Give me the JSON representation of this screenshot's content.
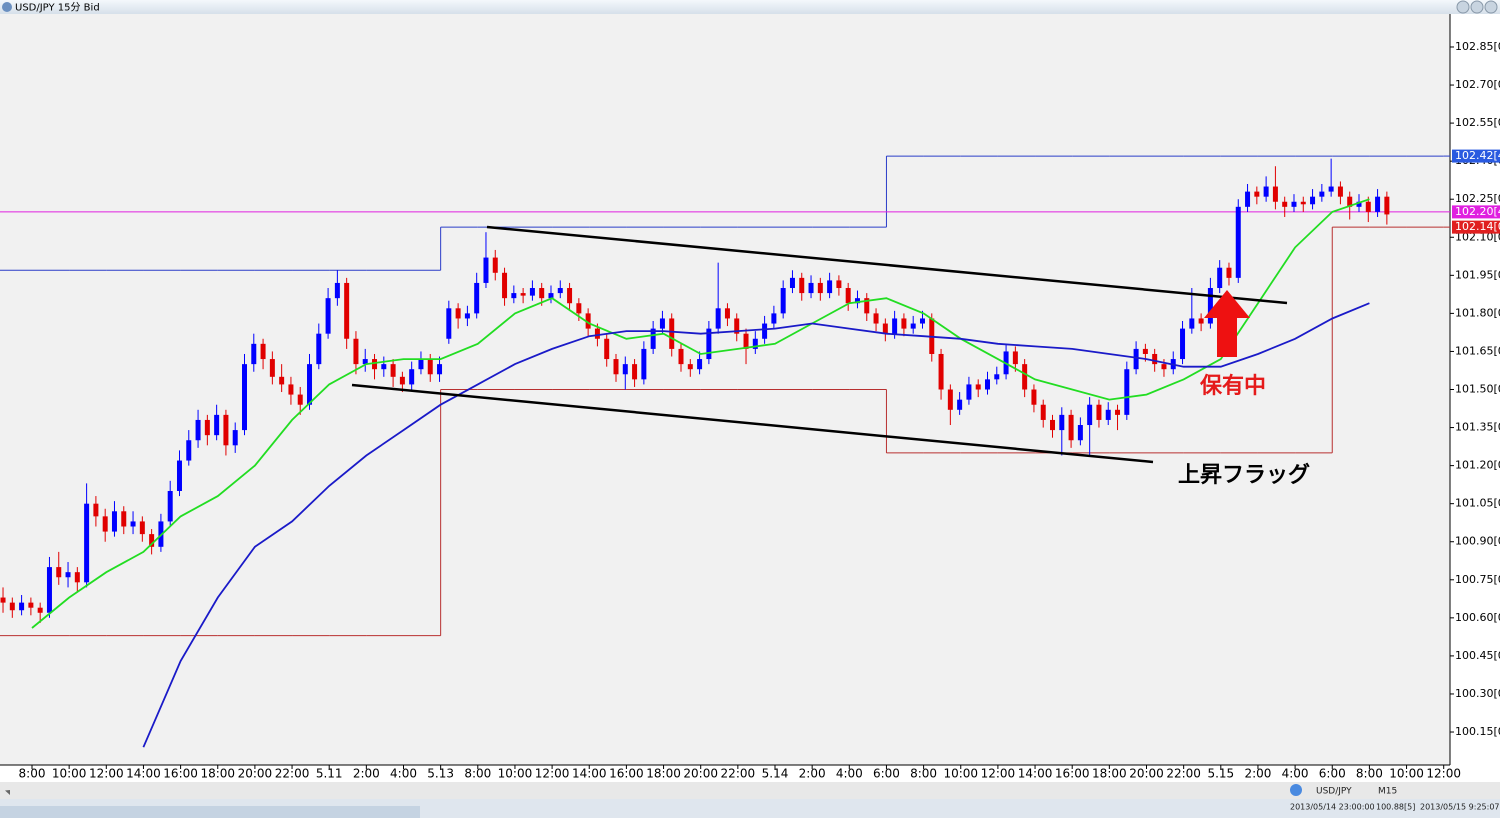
{
  "window_title": "USD/JPY 15分 Bid",
  "chart_data": {
    "type": "candlestick",
    "categories": [
      "8:00",
      "10:00",
      "12:00",
      "14:00",
      "16:00",
      "18:00",
      "20:00",
      "22:00",
      "5.11",
      "2:00",
      "4:00",
      "5.13",
      "8:00",
      "10:00",
      "12:00",
      "14:00",
      "16:00",
      "18:00",
      "20:00",
      "22:00",
      "5.14",
      "2:00",
      "4:00",
      "6:00",
      "8:00",
      "10:00",
      "12:00",
      "14:00",
      "16:00",
      "18:00",
      "20:00",
      "22:00",
      "5.15",
      "2:00",
      "4:00",
      "6:00",
      "8:00",
      "10:00",
      "12:00"
    ],
    "up_color": "#0000ff",
    "down_color": "#e00000",
    "candles": [
      [
        100.68,
        100.72,
        100.62,
        100.66
      ],
      [
        100.66,
        100.68,
        100.6,
        100.63
      ],
      [
        100.63,
        100.69,
        100.61,
        100.66
      ],
      [
        100.66,
        100.68,
        100.61,
        100.64
      ],
      [
        100.64,
        100.66,
        100.58,
        100.62
      ],
      [
        100.62,
        100.84,
        100.6,
        100.8
      ],
      [
        100.8,
        100.86,
        100.73,
        100.76
      ],
      [
        100.76,
        100.82,
        100.72,
        100.78
      ],
      [
        100.78,
        100.8,
        100.7,
        100.74
      ],
      [
        100.74,
        101.13,
        100.72,
        101.05
      ],
      [
        101.05,
        101.08,
        100.96,
        101.0
      ],
      [
        101.0,
        101.03,
        100.9,
        100.94
      ],
      [
        100.94,
        101.06,
        100.92,
        101.02
      ],
      [
        101.02,
        101.04,
        100.93,
        100.96
      ],
      [
        100.96,
        101.02,
        100.93,
        100.98
      ],
      [
        100.98,
        101.0,
        100.9,
        100.93
      ],
      [
        100.93,
        100.95,
        100.85,
        100.88
      ],
      [
        100.88,
        101.01,
        100.86,
        100.98
      ],
      [
        100.98,
        101.14,
        100.96,
        101.1
      ],
      [
        101.1,
        101.26,
        101.08,
        101.22
      ],
      [
        101.22,
        101.34,
        101.2,
        101.3
      ],
      [
        101.3,
        101.42,
        101.27,
        101.38
      ],
      [
        101.38,
        101.4,
        101.28,
        101.32
      ],
      [
        101.32,
        101.44,
        101.3,
        101.4
      ],
      [
        101.4,
        101.42,
        101.24,
        101.28
      ],
      [
        101.28,
        101.37,
        101.25,
        101.34
      ],
      [
        101.34,
        101.64,
        101.32,
        101.6
      ],
      [
        101.6,
        101.72,
        101.57,
        101.68
      ],
      [
        101.68,
        101.7,
        101.58,
        101.62
      ],
      [
        101.62,
        101.65,
        101.52,
        101.55
      ],
      [
        101.55,
        101.6,
        101.49,
        101.52
      ],
      [
        101.52,
        101.55,
        101.44,
        101.48
      ],
      [
        101.48,
        101.51,
        101.4,
        101.44
      ],
      [
        101.44,
        101.64,
        101.42,
        101.6
      ],
      [
        101.6,
        101.76,
        101.58,
        101.72
      ],
      [
        101.72,
        101.9,
        101.7,
        101.86
      ],
      [
        101.86,
        101.97,
        101.83,
        101.92
      ],
      [
        101.92,
        101.94,
        101.66,
        101.7
      ],
      [
        101.7,
        101.73,
        101.56,
        101.6
      ],
      [
        101.6,
        101.66,
        101.57,
        101.62
      ],
      [
        101.62,
        101.64,
        101.54,
        101.58
      ],
      [
        101.58,
        101.63,
        101.55,
        101.6
      ],
      [
        101.6,
        101.62,
        101.51,
        101.55
      ],
      [
        101.55,
        101.57,
        101.49,
        101.52
      ],
      [
        101.52,
        101.61,
        101.5,
        101.58
      ],
      [
        101.58,
        101.65,
        101.56,
        101.62
      ],
      [
        101.62,
        101.64,
        101.53,
        101.56
      ],
      [
        101.56,
        101.63,
        101.53,
        101.6
      ],
      [
        101.7,
        101.85,
        101.68,
        101.82
      ],
      [
        101.82,
        101.84,
        101.74,
        101.78
      ],
      [
        101.78,
        101.83,
        101.75,
        101.8
      ],
      [
        101.8,
        101.96,
        101.78,
        101.92
      ],
      [
        101.92,
        102.12,
        101.9,
        102.02
      ],
      [
        102.02,
        102.05,
        101.93,
        101.96
      ],
      [
        101.96,
        101.98,
        101.83,
        101.86
      ],
      [
        101.86,
        101.91,
        101.84,
        101.88
      ],
      [
        101.88,
        101.9,
        101.84,
        101.87
      ],
      [
        101.87,
        101.93,
        101.85,
        101.9
      ],
      [
        101.9,
        101.92,
        101.83,
        101.86
      ],
      [
        101.86,
        101.91,
        101.84,
        101.88
      ],
      [
        101.88,
        101.93,
        101.86,
        101.9
      ],
      [
        101.9,
        101.92,
        101.81,
        101.84
      ],
      [
        101.84,
        101.86,
        101.77,
        101.8
      ],
      [
        101.8,
        101.82,
        101.71,
        101.74
      ],
      [
        101.74,
        101.76,
        101.67,
        101.7
      ],
      [
        101.7,
        101.72,
        101.59,
        101.62
      ],
      [
        101.62,
        101.64,
        101.53,
        101.56
      ],
      [
        101.56,
        101.63,
        101.5,
        101.6
      ],
      [
        101.6,
        101.62,
        101.51,
        101.54
      ],
      [
        101.54,
        101.69,
        101.52,
        101.66
      ],
      [
        101.66,
        101.77,
        101.64,
        101.74
      ],
      [
        101.74,
        101.81,
        101.72,
        101.78
      ],
      [
        101.78,
        101.8,
        101.63,
        101.66
      ],
      [
        101.66,
        101.68,
        101.57,
        101.6
      ],
      [
        101.6,
        101.62,
        101.55,
        101.58
      ],
      [
        101.58,
        101.65,
        101.56,
        101.62
      ],
      [
        101.62,
        101.77,
        101.6,
        101.74
      ],
      [
        101.74,
        102.0,
        101.72,
        101.82
      ],
      [
        101.82,
        101.84,
        101.75,
        101.78
      ],
      [
        101.78,
        101.8,
        101.69,
        101.72
      ],
      [
        101.72,
        101.74,
        101.6,
        101.66
      ],
      [
        101.66,
        101.73,
        101.64,
        101.7
      ],
      [
        101.7,
        101.79,
        101.68,
        101.76
      ],
      [
        101.76,
        101.83,
        101.74,
        101.8
      ],
      [
        101.8,
        101.93,
        101.78,
        101.9
      ],
      [
        101.9,
        101.97,
        101.88,
        101.94
      ],
      [
        101.94,
        101.96,
        101.85,
        101.88
      ],
      [
        101.88,
        101.95,
        101.86,
        101.92
      ],
      [
        101.92,
        101.94,
        101.85,
        101.88
      ],
      [
        101.88,
        101.96,
        101.86,
        101.93
      ],
      [
        101.93,
        101.95,
        101.87,
        101.9
      ],
      [
        101.9,
        101.92,
        101.81,
        101.84
      ],
      [
        101.84,
        101.89,
        101.82,
        101.86
      ],
      [
        101.86,
        101.88,
        101.77,
        101.8
      ],
      [
        101.8,
        101.82,
        101.73,
        101.76
      ],
      [
        101.76,
        101.78,
        101.69,
        101.72
      ],
      [
        101.72,
        101.81,
        101.7,
        101.78
      ],
      [
        101.78,
        101.8,
        101.71,
        101.74
      ],
      [
        101.74,
        101.79,
        101.72,
        101.76
      ],
      [
        101.76,
        101.81,
        101.74,
        101.78
      ],
      [
        101.78,
        101.8,
        101.61,
        101.64
      ],
      [
        101.64,
        101.66,
        101.46,
        101.5
      ],
      [
        101.5,
        101.52,
        101.36,
        101.42
      ],
      [
        101.42,
        101.49,
        101.4,
        101.46
      ],
      [
        101.46,
        101.55,
        101.44,
        101.52
      ],
      [
        101.52,
        101.54,
        101.47,
        101.5
      ],
      [
        101.5,
        101.57,
        101.48,
        101.54
      ],
      [
        101.54,
        101.59,
        101.52,
        101.56
      ],
      [
        101.56,
        101.68,
        101.54,
        101.65
      ],
      [
        101.65,
        101.67,
        101.57,
        101.6
      ],
      [
        101.6,
        101.62,
        101.47,
        101.5
      ],
      [
        101.5,
        101.52,
        101.41,
        101.44
      ],
      [
        101.44,
        101.46,
        101.35,
        101.38
      ],
      [
        101.38,
        101.4,
        101.31,
        101.34
      ],
      [
        101.34,
        101.43,
        101.24,
        101.4
      ],
      [
        101.4,
        101.42,
        101.27,
        101.3
      ],
      [
        101.3,
        101.39,
        101.28,
        101.36
      ],
      [
        101.36,
        101.47,
        101.24,
        101.44
      ],
      [
        101.44,
        101.46,
        101.35,
        101.38
      ],
      [
        101.38,
        101.45,
        101.36,
        101.42
      ],
      [
        101.42,
        101.44,
        101.34,
        101.4
      ],
      [
        101.4,
        101.61,
        101.38,
        101.58
      ],
      [
        101.58,
        101.69,
        101.56,
        101.66
      ],
      [
        101.66,
        101.68,
        101.61,
        101.64
      ],
      [
        101.64,
        101.66,
        101.57,
        101.6
      ],
      [
        101.6,
        101.62,
        101.55,
        101.58
      ],
      [
        101.58,
        101.65,
        101.56,
        101.62
      ],
      [
        101.62,
        101.77,
        101.6,
        101.74
      ],
      [
        101.74,
        101.9,
        101.72,
        101.78
      ],
      [
        101.78,
        101.8,
        101.73,
        101.76
      ],
      [
        101.76,
        101.94,
        101.74,
        101.9
      ],
      [
        101.9,
        102.01,
        101.88,
        101.98
      ],
      [
        101.98,
        102.0,
        101.91,
        101.94
      ],
      [
        101.94,
        102.25,
        101.92,
        102.22
      ],
      [
        102.22,
        102.31,
        102.2,
        102.28
      ],
      [
        102.28,
        102.3,
        102.23,
        102.26
      ],
      [
        102.26,
        102.34,
        102.24,
        102.3
      ],
      [
        102.3,
        102.38,
        102.21,
        102.24
      ],
      [
        102.24,
        102.26,
        102.18,
        102.22
      ],
      [
        102.22,
        102.27,
        102.2,
        102.24
      ],
      [
        102.24,
        102.26,
        102.2,
        102.23
      ],
      [
        102.23,
        102.29,
        102.21,
        102.26
      ],
      [
        102.26,
        102.31,
        102.24,
        102.28
      ],
      [
        102.28,
        102.41,
        102.26,
        102.3
      ],
      [
        102.3,
        102.32,
        102.23,
        102.26
      ],
      [
        102.26,
        102.28,
        102.17,
        102.22
      ],
      [
        102.22,
        102.27,
        102.2,
        102.24
      ],
      [
        102.24,
        102.26,
        102.16,
        102.2
      ],
      [
        102.2,
        102.29,
        102.18,
        102.26
      ],
      [
        102.26,
        102.28,
        102.15,
        102.19
      ]
    ],
    "series": [
      {
        "color": "#22dd22",
        "values": [
          100.56,
          100.68,
          100.78,
          100.86,
          101.0,
          101.08,
          101.2,
          101.38,
          101.52,
          101.6,
          101.62,
          101.62,
          101.68,
          101.8,
          101.86,
          101.76,
          101.7,
          101.72,
          101.64,
          101.66,
          101.68,
          101.76,
          101.84,
          101.86,
          101.8,
          101.7,
          101.62,
          101.54,
          101.5,
          101.46,
          101.48,
          101.54,
          101.62,
          101.84,
          102.06,
          102.2,
          102.25,
          null,
          null
        ]
      },
      {
        "color": "#1a1ac8",
        "values": [
          null,
          null,
          null,
          100.09,
          100.43,
          100.68,
          100.88,
          100.98,
          101.12,
          101.24,
          101.34,
          101.44,
          101.52,
          101.6,
          101.66,
          101.71,
          101.73,
          101.73,
          101.72,
          101.73,
          101.74,
          101.76,
          101.74,
          101.72,
          101.71,
          101.7,
          101.68,
          101.67,
          101.66,
          101.64,
          101.62,
          101.59,
          101.59,
          101.64,
          101.7,
          101.78,
          101.84,
          null,
          null
        ]
      }
    ],
    "levels": [
      {
        "color": "#2a3cc8",
        "values": [
          101.97,
          101.97,
          101.97,
          101.97,
          101.97,
          101.97,
          101.97,
          101.97,
          101.97,
          101.97,
          101.97,
          102.14,
          102.14,
          102.14,
          102.14,
          102.14,
          102.14,
          102.14,
          102.14,
          102.14,
          102.14,
          102.14,
          102.14,
          102.42,
          102.42,
          102.42,
          102.42,
          102.42,
          102.42,
          102.42,
          102.42,
          102.42,
          102.42,
          102.42,
          102.42,
          102.42,
          102.42,
          102.42,
          102.42
        ]
      },
      {
        "color": "#b83030",
        "values": [
          100.53,
          100.53,
          100.53,
          100.53,
          100.53,
          100.53,
          100.53,
          100.53,
          100.53,
          100.53,
          100.53,
          101.5,
          101.5,
          101.5,
          101.5,
          101.5,
          101.5,
          101.5,
          101.5,
          101.5,
          101.5,
          101.5,
          101.5,
          101.25,
          101.25,
          101.25,
          101.25,
          101.25,
          101.25,
          101.25,
          101.25,
          101.25,
          101.25,
          101.25,
          101.25,
          102.14,
          102.14,
          102.14,
          102.14
        ]
      }
    ],
    "price_labels": [
      {
        "value": 102.42,
        "label": "102.42[4",
        "color": "#2a5ae0"
      },
      {
        "value": 102.2,
        "label": "102.20[4",
        "color": "#e020e0",
        "line": true
      },
      {
        "value": 102.14,
        "label": "102.14[0",
        "color": "#e02020"
      }
    ],
    "ylim": [
      100.02,
      102.98
    ],
    "yticks": [
      {
        "value": 100.15,
        "label": "100.15[0"
      },
      {
        "value": 100.3,
        "label": "100.30[0"
      },
      {
        "value": 100.45,
        "label": "100.45[0"
      },
      {
        "value": 100.6,
        "label": "100.60[0"
      },
      {
        "value": 100.75,
        "label": "100.75[0"
      },
      {
        "value": 100.9,
        "label": "100.90[0"
      },
      {
        "value": 101.05,
        "label": "101.05[0"
      },
      {
        "value": 101.2,
        "label": "101.20[0"
      },
      {
        "value": 101.35,
        "label": "101.35[0"
      },
      {
        "value": 101.5,
        "label": "101.50[0"
      },
      {
        "value": 101.65,
        "label": "101.65[0"
      },
      {
        "value": 101.8,
        "label": "101.80[0"
      },
      {
        "value": 101.95,
        "label": "101.95[0"
      },
      {
        "value": 102.1,
        "label": "102.10[0"
      },
      {
        "value": 102.25,
        "label": "102.25[0"
      },
      {
        "value": 102.4,
        "label": "102.40[0"
      },
      {
        "value": 102.55,
        "label": "102.55[0"
      },
      {
        "value": 102.7,
        "label": "102.70[0"
      },
      {
        "value": 102.85,
        "label": "102.85[0"
      }
    ],
    "annotations": [
      "上昇フラッグ",
      "保有中"
    ]
  },
  "status_bar": {
    "symbol": "USD/JPY",
    "timeframe": "M15",
    "bar_time": "2013/05/14 23:00:00",
    "bar_price": "100.88[5]",
    "server_time": "2013/05/15 9:25:07"
  }
}
